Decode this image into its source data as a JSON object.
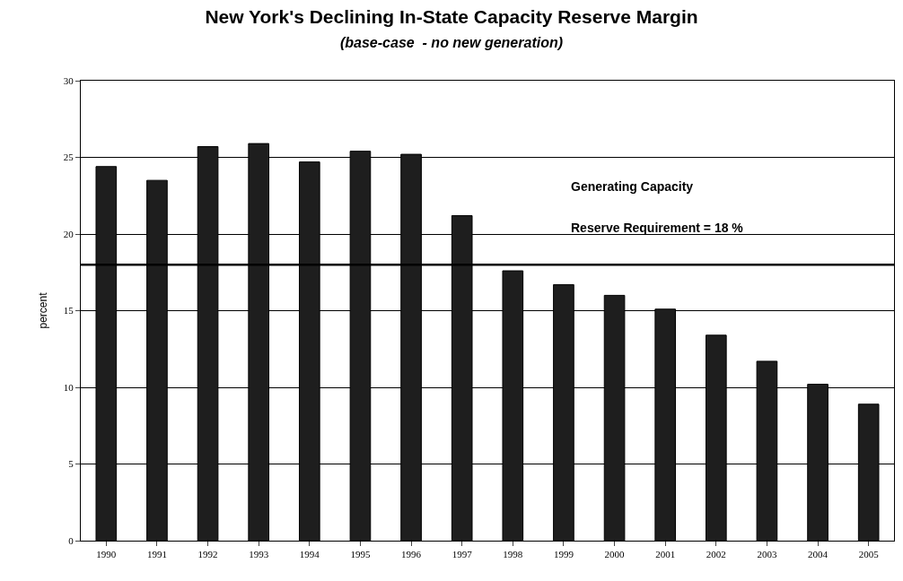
{
  "chart_data": {
    "type": "bar",
    "title": "New York's Declining In-State Capacity Reserve Margin",
    "subtitle": "(base-case  - no new generation)",
    "ylabel": "percent",
    "categories": [
      "1990",
      "1991",
      "1992",
      "1993",
      "1994",
      "1995",
      "1996",
      "1997",
      "1998",
      "1999",
      "2000",
      "2001",
      "2002",
      "2003",
      "2004",
      "2005"
    ],
    "values": [
      24.4,
      23.5,
      25.7,
      25.9,
      24.7,
      25.4,
      25.2,
      21.2,
      17.6,
      16.7,
      16.0,
      15.1,
      13.4,
      11.7,
      10.2,
      8.9
    ],
    "color": "#1e1e1e",
    "ylim": [
      0,
      30
    ],
    "yticks": [
      0,
      5,
      10,
      15,
      20,
      25,
      30
    ],
    "grid": "y",
    "legend": false,
    "ref_lines": [
      {
        "axis": "y",
        "value": 18,
        "label": "Reserve Requirement = 18 %",
        "color": "#000000"
      }
    ],
    "annotations": [
      "Generating Capacity"
    ]
  }
}
